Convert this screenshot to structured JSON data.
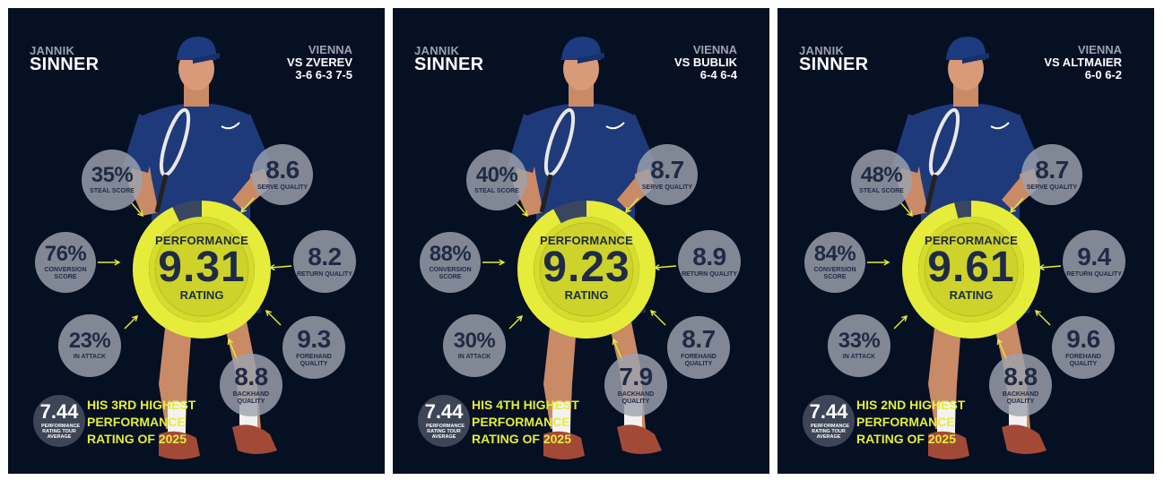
{
  "colors": {
    "background": "#061023",
    "accent_yellow": "#e6ec3a",
    "bubble_gray": "#9ca2af",
    "text_navy": "#1f2b45"
  },
  "panels": [
    {
      "first_name": "JANNIK",
      "last_name": "SINNER",
      "city": "VIENNA",
      "opponent": "VS ZVEREV",
      "score": "3-6 6-3 7-5",
      "rating": "9.31",
      "rating_fill_fraction": 0.93,
      "performance_label": "PERFORMANCE",
      "rating_label": "RATING",
      "steal_score": "35%",
      "steal_label": "STEAL SCORE",
      "serve_quality": "8.6",
      "serve_label": "SERVE QUALITY",
      "conversion_score": "76%",
      "conversion_label": "CONVERSION SCORE",
      "return_quality": "8.2",
      "return_label": "RETURN QUALITY",
      "in_attack": "23%",
      "attack_label": "IN ATTACK",
      "forehand_quality": "9.3",
      "forehand_label": "FOREHAND QUALITY",
      "backhand_quality": "8.8",
      "backhand_label": "BACKHAND QUALITY",
      "tour_average": "7.44",
      "tour_average_label": "PERFORMANCE RATING TOUR AVERAGE",
      "headline": "HIS 3RD HIGHEST PERFORMANCE RATING OF 2025"
    },
    {
      "first_name": "JANNIK",
      "last_name": "SINNER",
      "city": "VIENNA",
      "opponent": "VS BUBLIK",
      "score": "6-4 6-4",
      "rating": "9.23",
      "rating_fill_fraction": 0.92,
      "performance_label": "PERFORMANCE",
      "rating_label": "RATING",
      "steal_score": "40%",
      "steal_label": "STEAL SCORE",
      "serve_quality": "8.7",
      "serve_label": "SERVE QUALITY",
      "conversion_score": "88%",
      "conversion_label": "CONVERSION SCORE",
      "return_quality": "8.9",
      "return_label": "RETURN QUALITY",
      "in_attack": "30%",
      "attack_label": "IN ATTACK",
      "forehand_quality": "8.7",
      "forehand_label": "FOREHAND QUALITY",
      "backhand_quality": "7.9",
      "backhand_label": "BACKHAND QUALITY",
      "tour_average": "7.44",
      "tour_average_label": "PERFORMANCE RATING TOUR AVERAGE",
      "headline": "HIS 4TH HIGHEST PERFORMANCE RATING OF 2025"
    },
    {
      "first_name": "JANNIK",
      "last_name": "SINNER",
      "city": "VIENNA",
      "opponent": "VS ALTMAIER",
      "score": "6-0 6-2",
      "rating": "9.61",
      "rating_fill_fraction": 0.96,
      "performance_label": "PERFORMANCE",
      "rating_label": "RATING",
      "steal_score": "48%",
      "steal_label": "STEAL SCORE",
      "serve_quality": "8.7",
      "serve_label": "SERVE QUALITY",
      "conversion_score": "84%",
      "conversion_label": "CONVERSION SCORE",
      "return_quality": "9.4",
      "return_label": "RETURN QUALITY",
      "in_attack": "33%",
      "attack_label": "IN ATTACK",
      "forehand_quality": "9.6",
      "forehand_label": "FOREHAND QUALITY",
      "backhand_quality": "8.8",
      "backhand_label": "BACKHAND QUALITY",
      "tour_average": "7.44",
      "tour_average_label": "PERFORMANCE RATING TOUR AVERAGE",
      "headline": "HIS 2ND HIGHEST PERFORMANCE RATING OF 2025"
    }
  ]
}
